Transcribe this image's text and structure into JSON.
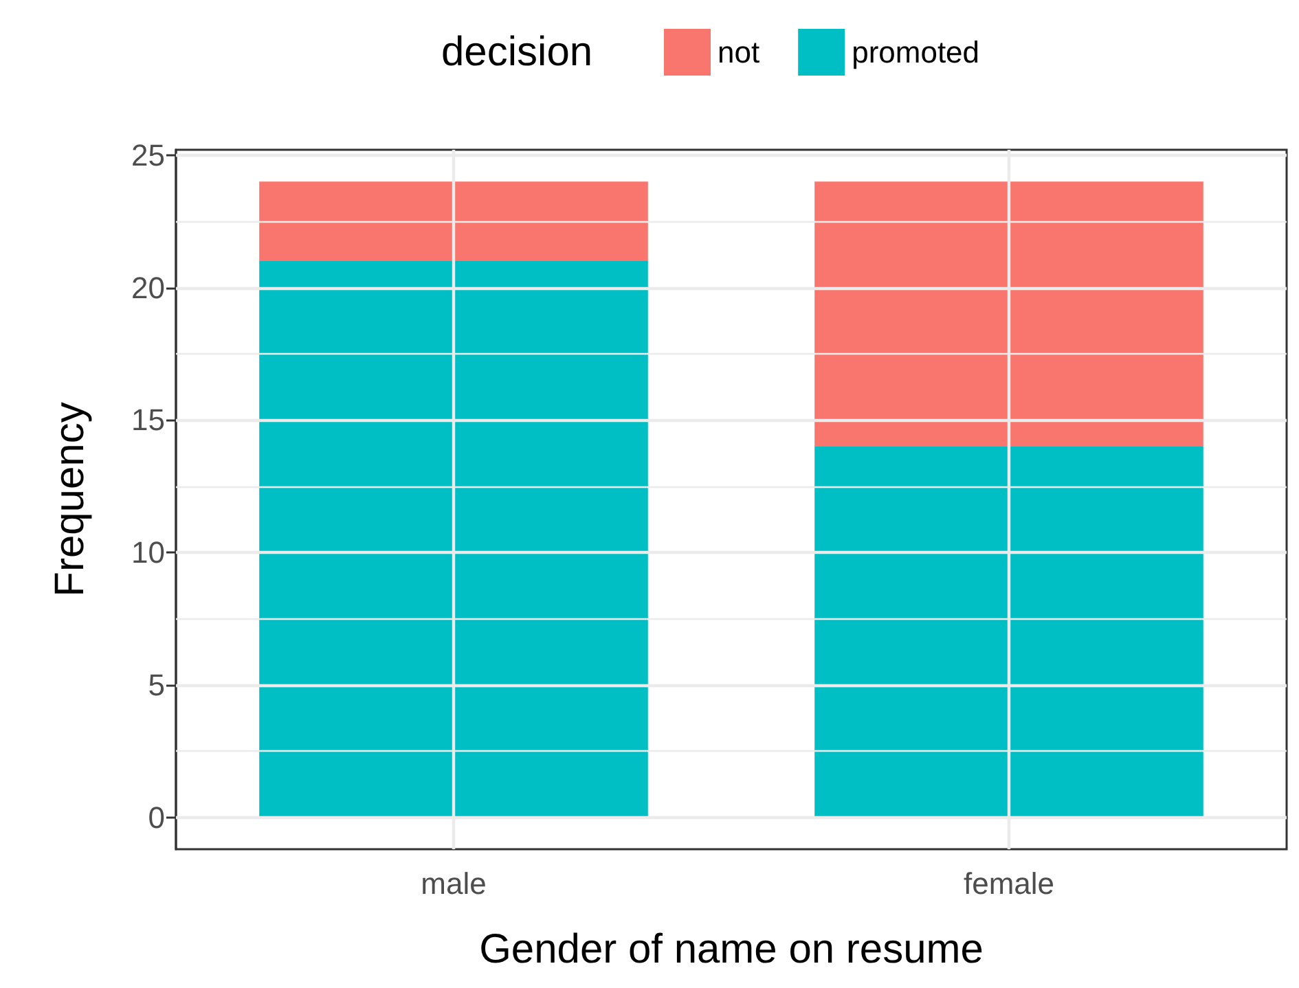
{
  "chart_data": {
    "type": "bar",
    "stacked": true,
    "legend_title": "decision",
    "legend": "top",
    "xlabel": "Gender of name on resume",
    "ylabel": "Frequency",
    "categories": [
      "male",
      "female"
    ],
    "series": [
      {
        "name": "promoted",
        "color": "#00bfc4",
        "values": [
          21,
          14
        ]
      },
      {
        "name": "not",
        "color": "#f8766d",
        "values": [
          3,
          10
        ]
      }
    ],
    "ylim": [
      -1.2,
      25.2
    ],
    "yticks": [
      0,
      {
        "value": 2.5,
        "label": null
      },
      5,
      {
        "value": 7.5,
        "label": null
      },
      10,
      {
        "value": 12.5,
        "label": null
      },
      15,
      {
        "value": 17.5,
        "label": null
      },
      20,
      {
        "value": 22.5,
        "label": null
      },
      25
    ],
    "grid": true
  }
}
